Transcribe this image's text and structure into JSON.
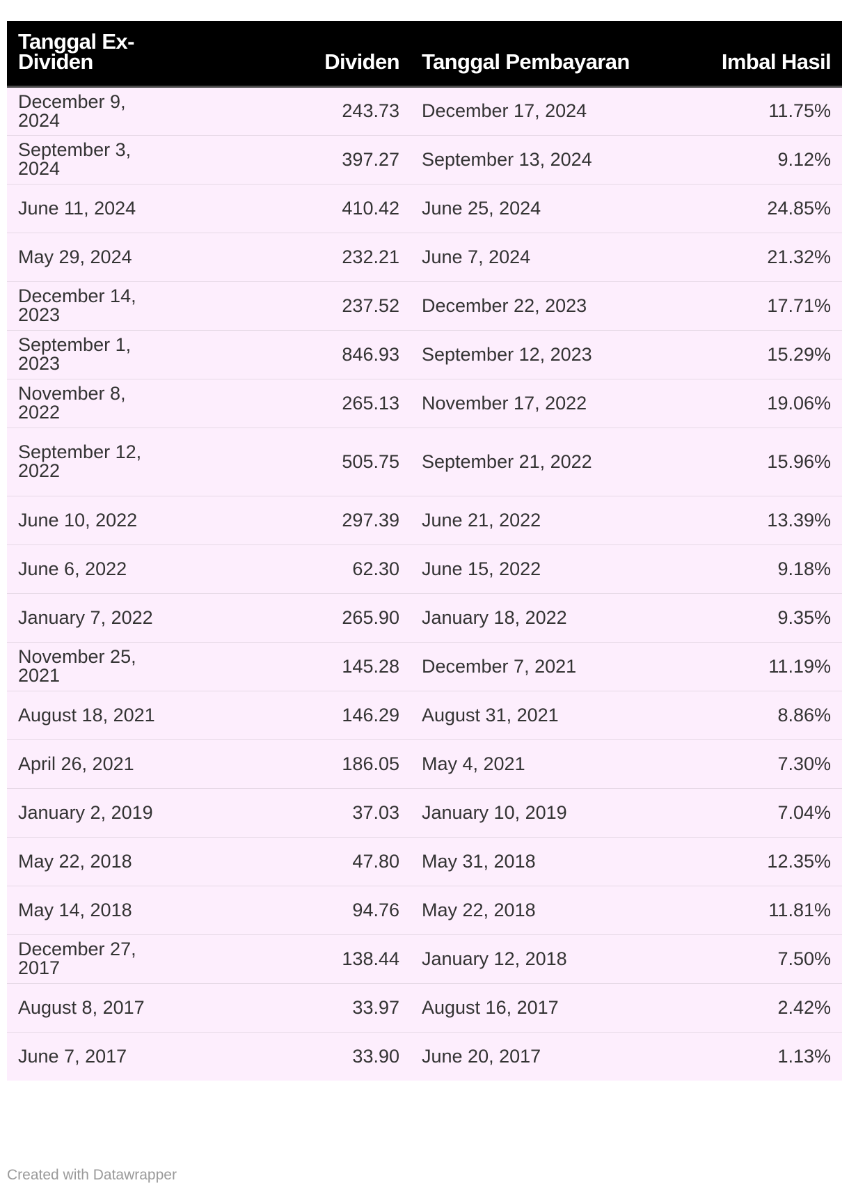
{
  "chart_data": {
    "type": "table",
    "columns": [
      "Tanggal Ex-Dividen",
      "Dividen",
      "Tanggal Pembayaran",
      "Imbal Hasil"
    ],
    "rows": [
      [
        "December 9, 2024",
        "243.73",
        "December 17, 2024",
        "11.75%"
      ],
      [
        "September 3, 2024",
        "397.27",
        "September 13, 2024",
        "9.12%"
      ],
      [
        "June 11, 2024",
        "410.42",
        "June 25, 2024",
        "24.85%"
      ],
      [
        "May 29, 2024",
        "232.21",
        "June 7, 2024",
        "21.32%"
      ],
      [
        "December 14, 2023",
        "237.52",
        "December 22, 2023",
        "17.71%"
      ],
      [
        "September 1, 2023",
        "846.93",
        "September 12, 2023",
        "15.29%"
      ],
      [
        "November 8, 2022",
        "265.13",
        "November 17, 2022",
        "19.06%"
      ],
      [
        "September 12, 2022",
        "505.75",
        "September 21, 2022",
        "15.96%"
      ],
      [
        "June 10, 2022",
        "297.39",
        "June 21, 2022",
        "13.39%"
      ],
      [
        "June 6, 2022",
        "62.30",
        "June 15, 2022",
        "9.18%"
      ],
      [
        "January 7, 2022",
        "265.90",
        "January 18, 2022",
        "9.35%"
      ],
      [
        "November 25, 2021",
        "145.28",
        "December 7, 2021",
        "11.19%"
      ],
      [
        "August 18, 2021",
        "146.29",
        "August 31, 2021",
        "8.86%"
      ],
      [
        "April 26, 2021",
        "186.05",
        "May 4, 2021",
        "7.30%"
      ],
      [
        "January 2, 2019",
        "37.03",
        "January 10, 2019",
        "7.04%"
      ],
      [
        "May 22, 2018",
        "47.80",
        "May 31, 2018",
        "12.35%"
      ],
      [
        "May 14, 2018",
        "94.76",
        "May 22, 2018",
        "11.81%"
      ],
      [
        "December 27, 2017",
        "138.44",
        "January 12, 2018",
        "7.50%"
      ],
      [
        "August 8, 2017",
        "33.97",
        "August 16, 2017",
        "2.42%"
      ],
      [
        "June 7, 2017",
        "33.90",
        "June 20, 2017",
        "1.13%"
      ]
    ]
  },
  "footer": {
    "credit": "Created with Datawrapper"
  },
  "colors": {
    "header_background": "#000000",
    "header_text": "#ffffff",
    "row_background": "#fdeefd",
    "row_divider": "#e6d9e6",
    "body_text": "#333333",
    "footer_text": "#9a9a9a"
  }
}
